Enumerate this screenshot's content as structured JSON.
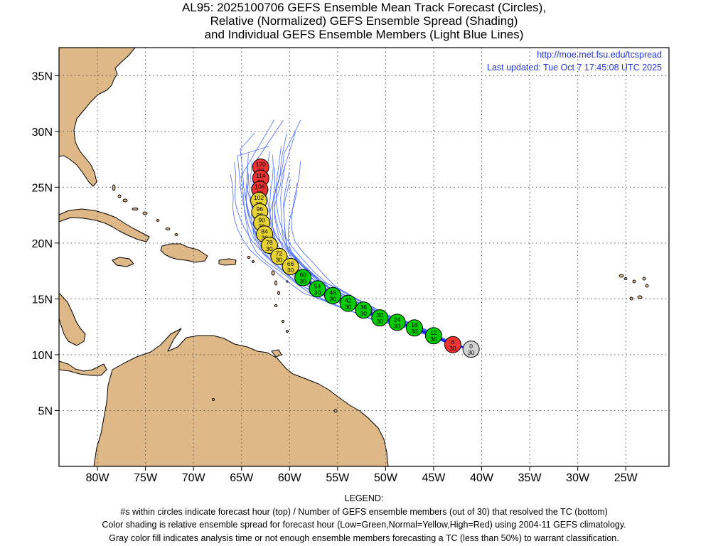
{
  "title": {
    "line1": "AL95: 2025100706 GEFS Ensemble Mean Track Forecast (Circles),",
    "line2": "Relative (Normalized) GEFS Ensemble Spread (Shading)",
    "line3": "and Individual GEFS Ensemble Members (Light Blue Lines)"
  },
  "credit": {
    "url": "http://moe.met.fsu.edu/tcspread",
    "updated": "Last updated: Tue Oct 7 17:45:08 UTC 2025"
  },
  "legend": {
    "heading": "LEGEND:",
    "line1": "#s within circles indicate forecast hour (top) / Number of GEFS ensemble members (out of 30) that resolved the TC (bottom)",
    "line2": "Color shading is relative ensemble spread for forecast hour (Low=Green,Normal=Yellow,High=Red) using 2004-11 GEFS climatology.",
    "line3": "Gray color fill indicates analysis time or not enough ensemble members forecasting a TC (less than 50%) to warrant classification."
  },
  "colors": {
    "land": "#deb887",
    "gray": "#d3d3d3",
    "low": "#00cc00",
    "normal": "#e6d232",
    "high": "#ee3333",
    "member_line": "#4a6cff",
    "mean_line": "#1818ff"
  },
  "axes": {
    "lon_range": [
      -84,
      -20.5
    ],
    "lat_range": [
      0,
      37.5
    ],
    "lon_ticks": [
      -80,
      -75,
      -70,
      -65,
      -60,
      -55,
      -50,
      -45,
      -40,
      -35,
      -30,
      -25
    ],
    "lon_labels": [
      "80W",
      "75W",
      "70W",
      "65W",
      "60W",
      "55W",
      "50W",
      "45W",
      "40W",
      "35W",
      "30W",
      "25W"
    ],
    "lat_ticks": [
      5,
      10,
      15,
      20,
      25,
      30,
      35
    ],
    "lat_labels": [
      "5N",
      "10N",
      "15N",
      "20N",
      "25N",
      "30N",
      "35N"
    ],
    "grid": true
  },
  "track": [
    {
      "hour": "0",
      "members": "30",
      "lon": -41.1,
      "lat": 10.5,
      "spread": "gray"
    },
    {
      "hour": "6",
      "members": "30",
      "lon": -43.0,
      "lat": 10.9,
      "spread": "high"
    },
    {
      "hour": "12",
      "members": "30",
      "lon": -45.0,
      "lat": 11.7,
      "spread": "low"
    },
    {
      "hour": "18",
      "members": "30",
      "lon": -47.0,
      "lat": 12.4,
      "spread": "low"
    },
    {
      "hour": "24",
      "members": "30",
      "lon": -48.8,
      "lat": 12.9,
      "spread": "low"
    },
    {
      "hour": "30",
      "members": "30",
      "lon": -50.6,
      "lat": 13.3,
      "spread": "low"
    },
    {
      "hour": "36",
      "members": "30",
      "lon": -52.3,
      "lat": 14.0,
      "spread": "low"
    },
    {
      "hour": "42",
      "members": "30",
      "lon": -53.9,
      "lat": 14.6,
      "spread": "low"
    },
    {
      "hour": "48",
      "members": "30",
      "lon": -55.5,
      "lat": 15.3,
      "spread": "low"
    },
    {
      "hour": "54",
      "members": "30",
      "lon": -57.1,
      "lat": 15.9,
      "spread": "low"
    },
    {
      "hour": "60",
      "members": "30",
      "lon": -58.6,
      "lat": 16.9,
      "spread": "low"
    },
    {
      "hour": "66",
      "members": "30",
      "lon": -59.9,
      "lat": 17.9,
      "spread": "normal"
    },
    {
      "hour": "72",
      "members": "30",
      "lon": -61.1,
      "lat": 18.8,
      "spread": "normal"
    },
    {
      "hour": "78",
      "members": "30",
      "lon": -62.1,
      "lat": 19.8,
      "spread": "normal"
    },
    {
      "hour": "84",
      "members": "30",
      "lon": -62.6,
      "lat": 20.8,
      "spread": "normal"
    },
    {
      "hour": "90",
      "members": "30",
      "lon": -62.9,
      "lat": 21.8,
      "spread": "normal"
    },
    {
      "hour": "96",
      "members": "30",
      "lon": -63.1,
      "lat": 22.8,
      "spread": "normal"
    },
    {
      "hour": "102",
      "members": "30",
      "lon": -63.2,
      "lat": 23.8,
      "spread": "normal"
    },
    {
      "hour": "108",
      "members": "30",
      "lon": -63.1,
      "lat": 24.8,
      "spread": "high"
    },
    {
      "hour": "114",
      "members": "30",
      "lon": -63.0,
      "lat": 25.8,
      "spread": "high"
    },
    {
      "hour": "120",
      "members": "30",
      "lon": -63.0,
      "lat": 26.8,
      "spread": "high"
    }
  ]
}
